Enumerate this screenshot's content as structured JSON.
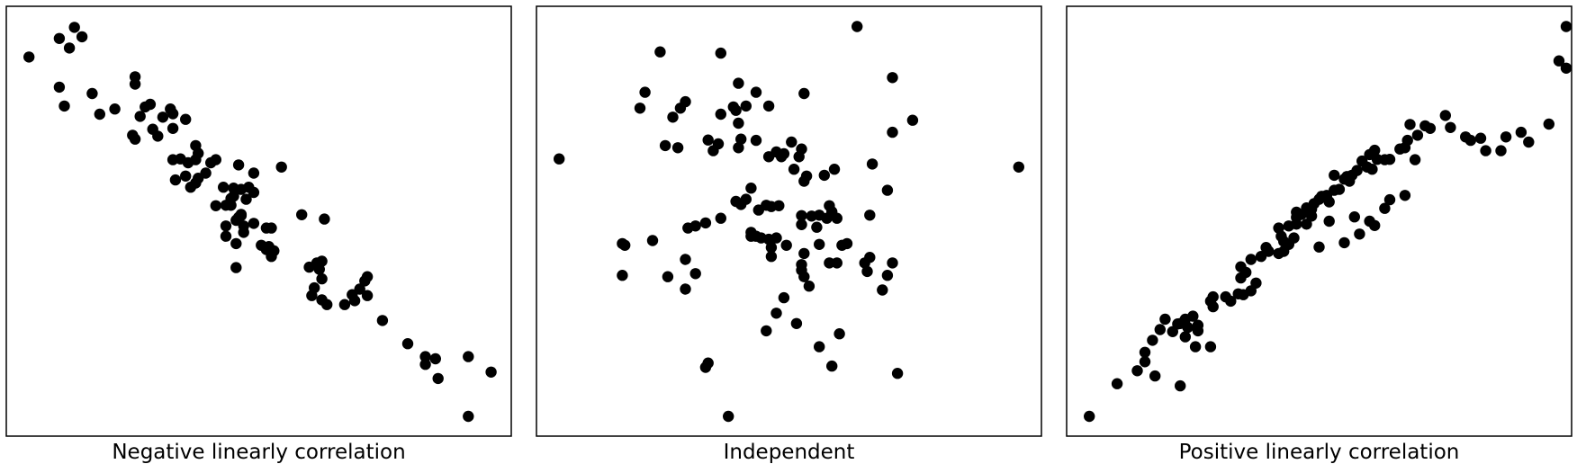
{
  "figure": {
    "marker_color": "#000000",
    "background": "#ffffff"
  },
  "chart_data": [
    {
      "type": "scatter",
      "title": "",
      "xlabel": "Negative linearly correlation",
      "ylabel": "",
      "xlim": [
        0,
        100
      ],
      "ylim": [
        0,
        100
      ],
      "grid": false,
      "axis_ticks": false,
      "points": [
        [
          4.5,
          88.2
        ],
        [
          10.5,
          92.5
        ],
        [
          12.5,
          90.3
        ],
        [
          13.5,
          95.1
        ],
        [
          15,
          92.9
        ],
        [
          10.5,
          81.2
        ],
        [
          11.5,
          76.8
        ],
        [
          17,
          79.7
        ],
        [
          18.5,
          74.9
        ],
        [
          21.5,
          76.1
        ],
        [
          25.5,
          81.9
        ],
        [
          25.5,
          83.6
        ],
        [
          26.5,
          74.4
        ],
        [
          27.5,
          76.6
        ],
        [
          28.5,
          77.2
        ],
        [
          25,
          70
        ],
        [
          25.5,
          69.1
        ],
        [
          29,
          71.4
        ],
        [
          30,
          69.8
        ],
        [
          31,
          74.2
        ],
        [
          32.5,
          76.1
        ],
        [
          33,
          75
        ],
        [
          35.5,
          73.7
        ],
        [
          33,
          71.6
        ],
        [
          37.5,
          67.6
        ],
        [
          38,
          65.8
        ],
        [
          33,
          64.3
        ],
        [
          34.5,
          64.5
        ],
        [
          36,
          63.6
        ],
        [
          37.5,
          64.3
        ],
        [
          40.5,
          63.6
        ],
        [
          41.5,
          64.3
        ],
        [
          39.5,
          61.2
        ],
        [
          33.5,
          59.6
        ],
        [
          35.5,
          60.5
        ],
        [
          36.5,
          57.9
        ],
        [
          38,
          60
        ],
        [
          37.5,
          58.9
        ],
        [
          46,
          63.1
        ],
        [
          49,
          61.2
        ],
        [
          43,
          57.9
        ],
        [
          46.5,
          57.4
        ],
        [
          45,
          57.7
        ],
        [
          45,
          55.8
        ],
        [
          48,
          57.9
        ],
        [
          54.5,
          62.6
        ],
        [
          49,
          56.7
        ],
        [
          47.5,
          55.1
        ],
        [
          44.5,
          55.3
        ],
        [
          41.5,
          53.6
        ],
        [
          43.5,
          48.9
        ],
        [
          43.5,
          46.5
        ],
        [
          47,
          48.9
        ],
        [
          47,
          47.4
        ],
        [
          46.5,
          51.6
        ],
        [
          46,
          50.9
        ],
        [
          45.5,
          50.2
        ],
        [
          43.5,
          53.7
        ],
        [
          44.5,
          53.7
        ],
        [
          46.5,
          51.3
        ],
        [
          49,
          49.5
        ],
        [
          52.5,
          48.4
        ],
        [
          51.5,
          48.4
        ],
        [
          45.5,
          44.8
        ],
        [
          45.5,
          39.2
        ],
        [
          50.5,
          44.4
        ],
        [
          52,
          44.1
        ],
        [
          51.5,
          43.4
        ],
        [
          53,
          43.1
        ],
        [
          52.5,
          41.8
        ],
        [
          58.5,
          51.5
        ],
        [
          63,
          50.5
        ],
        [
          61.5,
          40.3
        ],
        [
          62.5,
          40.7
        ],
        [
          60,
          39.3
        ],
        [
          62,
          38.8
        ],
        [
          62.5,
          36.6
        ],
        [
          61,
          34.5
        ],
        [
          62.5,
          31.7
        ],
        [
          63.5,
          30.6
        ],
        [
          60.5,
          32.7
        ],
        [
          68.5,
          32.9
        ],
        [
          69,
          31.5
        ],
        [
          71,
          36.1
        ],
        [
          70,
          34.2
        ],
        [
          71.5,
          37.1
        ],
        [
          71.5,
          32.7
        ],
        [
          67,
          30.6
        ],
        [
          74.5,
          26.9
        ],
        [
          79.5,
          21.5
        ],
        [
          83,
          18.5
        ],
        [
          85,
          18
        ],
        [
          83,
          16.7
        ],
        [
          85.5,
          13.4
        ],
        [
          91.5,
          18.5
        ],
        [
          96,
          14.9
        ],
        [
          91.5,
          4.6
        ]
      ]
    },
    {
      "type": "scatter",
      "title": "",
      "xlabel": "Independent",
      "ylabel": "",
      "xlim": [
        0,
        100
      ],
      "ylim": [
        0,
        100
      ],
      "grid": false,
      "axis_ticks": false,
      "points": [
        [
          4.5,
          64.5
        ],
        [
          63.5,
          95.3
        ],
        [
          24.5,
          89.4
        ],
        [
          36.5,
          89.1
        ],
        [
          21.5,
          80
        ],
        [
          28.5,
          76.3
        ],
        [
          29.5,
          77.8
        ],
        [
          40,
          82.1
        ],
        [
          43.5,
          80
        ],
        [
          53,
          79.7
        ],
        [
          20.5,
          76.3
        ],
        [
          27,
          74.2
        ],
        [
          39,
          76.6
        ],
        [
          39.5,
          75.8
        ],
        [
          41.5,
          76.8
        ],
        [
          46,
          76.8
        ],
        [
          36.5,
          74.9
        ],
        [
          40,
          72.8
        ],
        [
          40.5,
          69.1
        ],
        [
          34,
          68.9
        ],
        [
          36,
          68
        ],
        [
          25.5,
          67.6
        ],
        [
          28,
          67.1
        ],
        [
          35,
          66.4
        ],
        [
          40,
          67.1
        ],
        [
          43.5,
          68.8
        ],
        [
          50.5,
          68.4
        ],
        [
          52.5,
          66.8
        ],
        [
          46,
          65
        ],
        [
          47.5,
          66.1
        ],
        [
          49,
          65.7
        ],
        [
          48.5,
          65
        ],
        [
          52,
          65
        ],
        [
          51,
          62.1
        ],
        [
          59,
          62.1
        ],
        [
          57,
          60.7
        ],
        [
          53.5,
          60.5
        ],
        [
          53,
          59.3
        ],
        [
          42.5,
          57.7
        ],
        [
          41.5,
          55.1
        ],
        [
          39.5,
          54.6
        ],
        [
          40.5,
          53.9
        ],
        [
          45.5,
          53.7
        ],
        [
          46.5,
          53.4
        ],
        [
          48,
          53.6
        ],
        [
          44,
          52.6
        ],
        [
          58,
          53.6
        ],
        [
          58.5,
          52.2
        ],
        [
          57.5,
          50.7
        ],
        [
          52.5,
          51.3
        ],
        [
          54.5,
          51.2
        ],
        [
          56,
          51.4
        ],
        [
          52.5,
          49.2
        ],
        [
          55.5,
          48.6
        ],
        [
          59.5,
          50.7
        ],
        [
          66,
          51.4
        ],
        [
          33.5,
          49.6
        ],
        [
          36.5,
          50.7
        ],
        [
          31.5,
          48.9
        ],
        [
          30,
          48.4
        ],
        [
          42.5,
          47.4
        ],
        [
          42.5,
          46.5
        ],
        [
          43.5,
          46.5
        ],
        [
          44.5,
          46.1
        ],
        [
          46,
          45.8
        ],
        [
          47.5,
          46.1
        ],
        [
          49.5,
          44.4
        ],
        [
          46.5,
          43.9
        ],
        [
          56,
          44.6
        ],
        [
          60.5,
          44.4
        ],
        [
          61.5,
          44.8
        ],
        [
          23,
          45.5
        ],
        [
          17.5,
          44.4
        ],
        [
          46.5,
          41.8
        ],
        [
          29.5,
          41.1
        ],
        [
          52.5,
          39.9
        ],
        [
          53,
          42.5
        ],
        [
          58,
          40.3
        ],
        [
          59.5,
          40.3
        ],
        [
          65,
          40.3
        ],
        [
          66,
          41.6
        ],
        [
          65.5,
          38.3
        ],
        [
          26,
          37.1
        ],
        [
          31.5,
          37.8
        ],
        [
          17,
          37.4
        ],
        [
          17,
          44.8
        ],
        [
          52.5,
          38.6
        ],
        [
          53,
          37.1
        ],
        [
          29.5,
          34.2
        ],
        [
          49,
          32.2
        ],
        [
          54,
          34.9
        ],
        [
          70.5,
          83.4
        ],
        [
          74.5,
          73.5
        ],
        [
          95.5,
          62.6
        ],
        [
          70.5,
          70.7
        ],
        [
          66.5,
          63.3
        ],
        [
          69.5,
          57.2
        ],
        [
          70.5,
          40.3
        ],
        [
          69.5,
          37.4
        ],
        [
          68.5,
          34
        ],
        [
          51.5,
          26.2
        ],
        [
          60,
          23.8
        ],
        [
          56,
          20.8
        ],
        [
          47.5,
          28.6
        ],
        [
          45.5,
          24.5
        ],
        [
          33.5,
          16
        ],
        [
          34,
          17
        ],
        [
          71.5,
          14.6
        ],
        [
          58.5,
          16.3
        ],
        [
          38,
          4.6
        ]
      ]
    },
    {
      "type": "scatter",
      "title": "",
      "xlabel": "Positive linearly correlation",
      "ylabel": "",
      "xlim": [
        0,
        100
      ],
      "ylim": [
        0,
        100
      ],
      "grid": false,
      "axis_ticks": false,
      "points": [
        [
          4.5,
          4.6
        ],
        [
          10,
          12.2
        ],
        [
          14,
          15.2
        ],
        [
          15.5,
          17.3
        ],
        [
          17.5,
          14
        ],
        [
          22.5,
          11.7
        ],
        [
          15.5,
          19.5
        ],
        [
          17,
          22.3
        ],
        [
          19.5,
          27.2
        ],
        [
          18.5,
          24.8
        ],
        [
          22.5,
          26.2
        ],
        [
          23.5,
          27.2
        ],
        [
          25,
          27.9
        ],
        [
          26,
          25.8
        ],
        [
          26,
          24.5
        ],
        [
          24,
          25.3
        ],
        [
          22,
          26.1
        ],
        [
          21,
          24.3
        ],
        [
          25.5,
          20.8
        ],
        [
          23.5,
          23.1
        ],
        [
          28.5,
          20.8
        ],
        [
          29,
          30.1
        ],
        [
          29,
          32.4
        ],
        [
          28.5,
          31.4
        ],
        [
          31.5,
          32.4
        ],
        [
          32.5,
          31.4
        ],
        [
          34,
          33.1
        ],
        [
          35,
          32.9
        ],
        [
          36.5,
          33.8
        ],
        [
          37.5,
          35.6
        ],
        [
          34.5,
          36.8
        ],
        [
          35.5,
          38.1
        ],
        [
          34.5,
          39.4
        ],
        [
          36.5,
          41.1
        ],
        [
          38.5,
          41.8
        ],
        [
          39.5,
          43.9
        ],
        [
          40,
          43
        ],
        [
          42,
          42.5
        ],
        [
          43,
          43
        ],
        [
          44,
          44.6
        ],
        [
          43,
          45.3
        ],
        [
          45,
          46.1
        ],
        [
          42.5,
          46.5
        ],
        [
          42,
          48.4
        ],
        [
          44,
          48.9
        ],
        [
          45.5,
          49.3
        ],
        [
          45.5,
          50.9
        ],
        [
          45.5,
          52.1
        ],
        [
          46.5,
          51.6
        ],
        [
          47.5,
          49.3
        ],
        [
          48.5,
          51.2
        ],
        [
          47.5,
          53.1
        ],
        [
          48.5,
          52.8
        ],
        [
          49,
          54.1
        ],
        [
          50,
          55.1
        ],
        [
          50.5,
          55.8
        ],
        [
          51.5,
          56
        ],
        [
          52,
          54.5
        ],
        [
          53,
          57.2
        ],
        [
          54,
          57.4
        ],
        [
          55.5,
          60.4
        ],
        [
          53,
          60.7
        ],
        [
          55,
          59.8
        ],
        [
          56,
          59.3
        ],
        [
          56.5,
          60.7
        ],
        [
          57.5,
          61.8
        ],
        [
          58.5,
          64
        ],
        [
          59.5,
          62.6
        ],
        [
          60.5,
          62.1
        ],
        [
          61.5,
          64.4
        ],
        [
          60,
          65.5
        ],
        [
          63,
          64.3
        ],
        [
          64,
          64.4
        ],
        [
          61,
          66.5
        ],
        [
          66,
          66.8
        ],
        [
          67,
          67.1
        ],
        [
          69,
          64.3
        ],
        [
          67.5,
          68.8
        ],
        [
          69.5,
          70
        ],
        [
          68,
          72.5
        ],
        [
          71,
          72.2
        ],
        [
          72,
          71.6
        ],
        [
          75,
          74.6
        ],
        [
          76,
          71.8
        ],
        [
          79,
          69.6
        ],
        [
          80,
          68.8
        ],
        [
          82,
          69.3
        ],
        [
          83,
          66.4
        ],
        [
          86,
          66.4
        ],
        [
          87,
          69.6
        ],
        [
          90,
          70.7
        ],
        [
          91.5,
          68.4
        ],
        [
          95.5,
          72.6
        ],
        [
          97.5,
          87.3
        ],
        [
          99,
          85.6
        ],
        [
          103.5,
          95.3
        ],
        [
          50,
          44
        ],
        [
          55,
          45
        ],
        [
          58,
          47
        ],
        [
          60,
          50
        ],
        [
          52,
          50
        ],
        [
          61,
          49
        ],
        [
          57,
          51
        ],
        [
          63,
          53
        ],
        [
          64,
          55
        ],
        [
          67,
          56
        ]
      ]
    }
  ]
}
